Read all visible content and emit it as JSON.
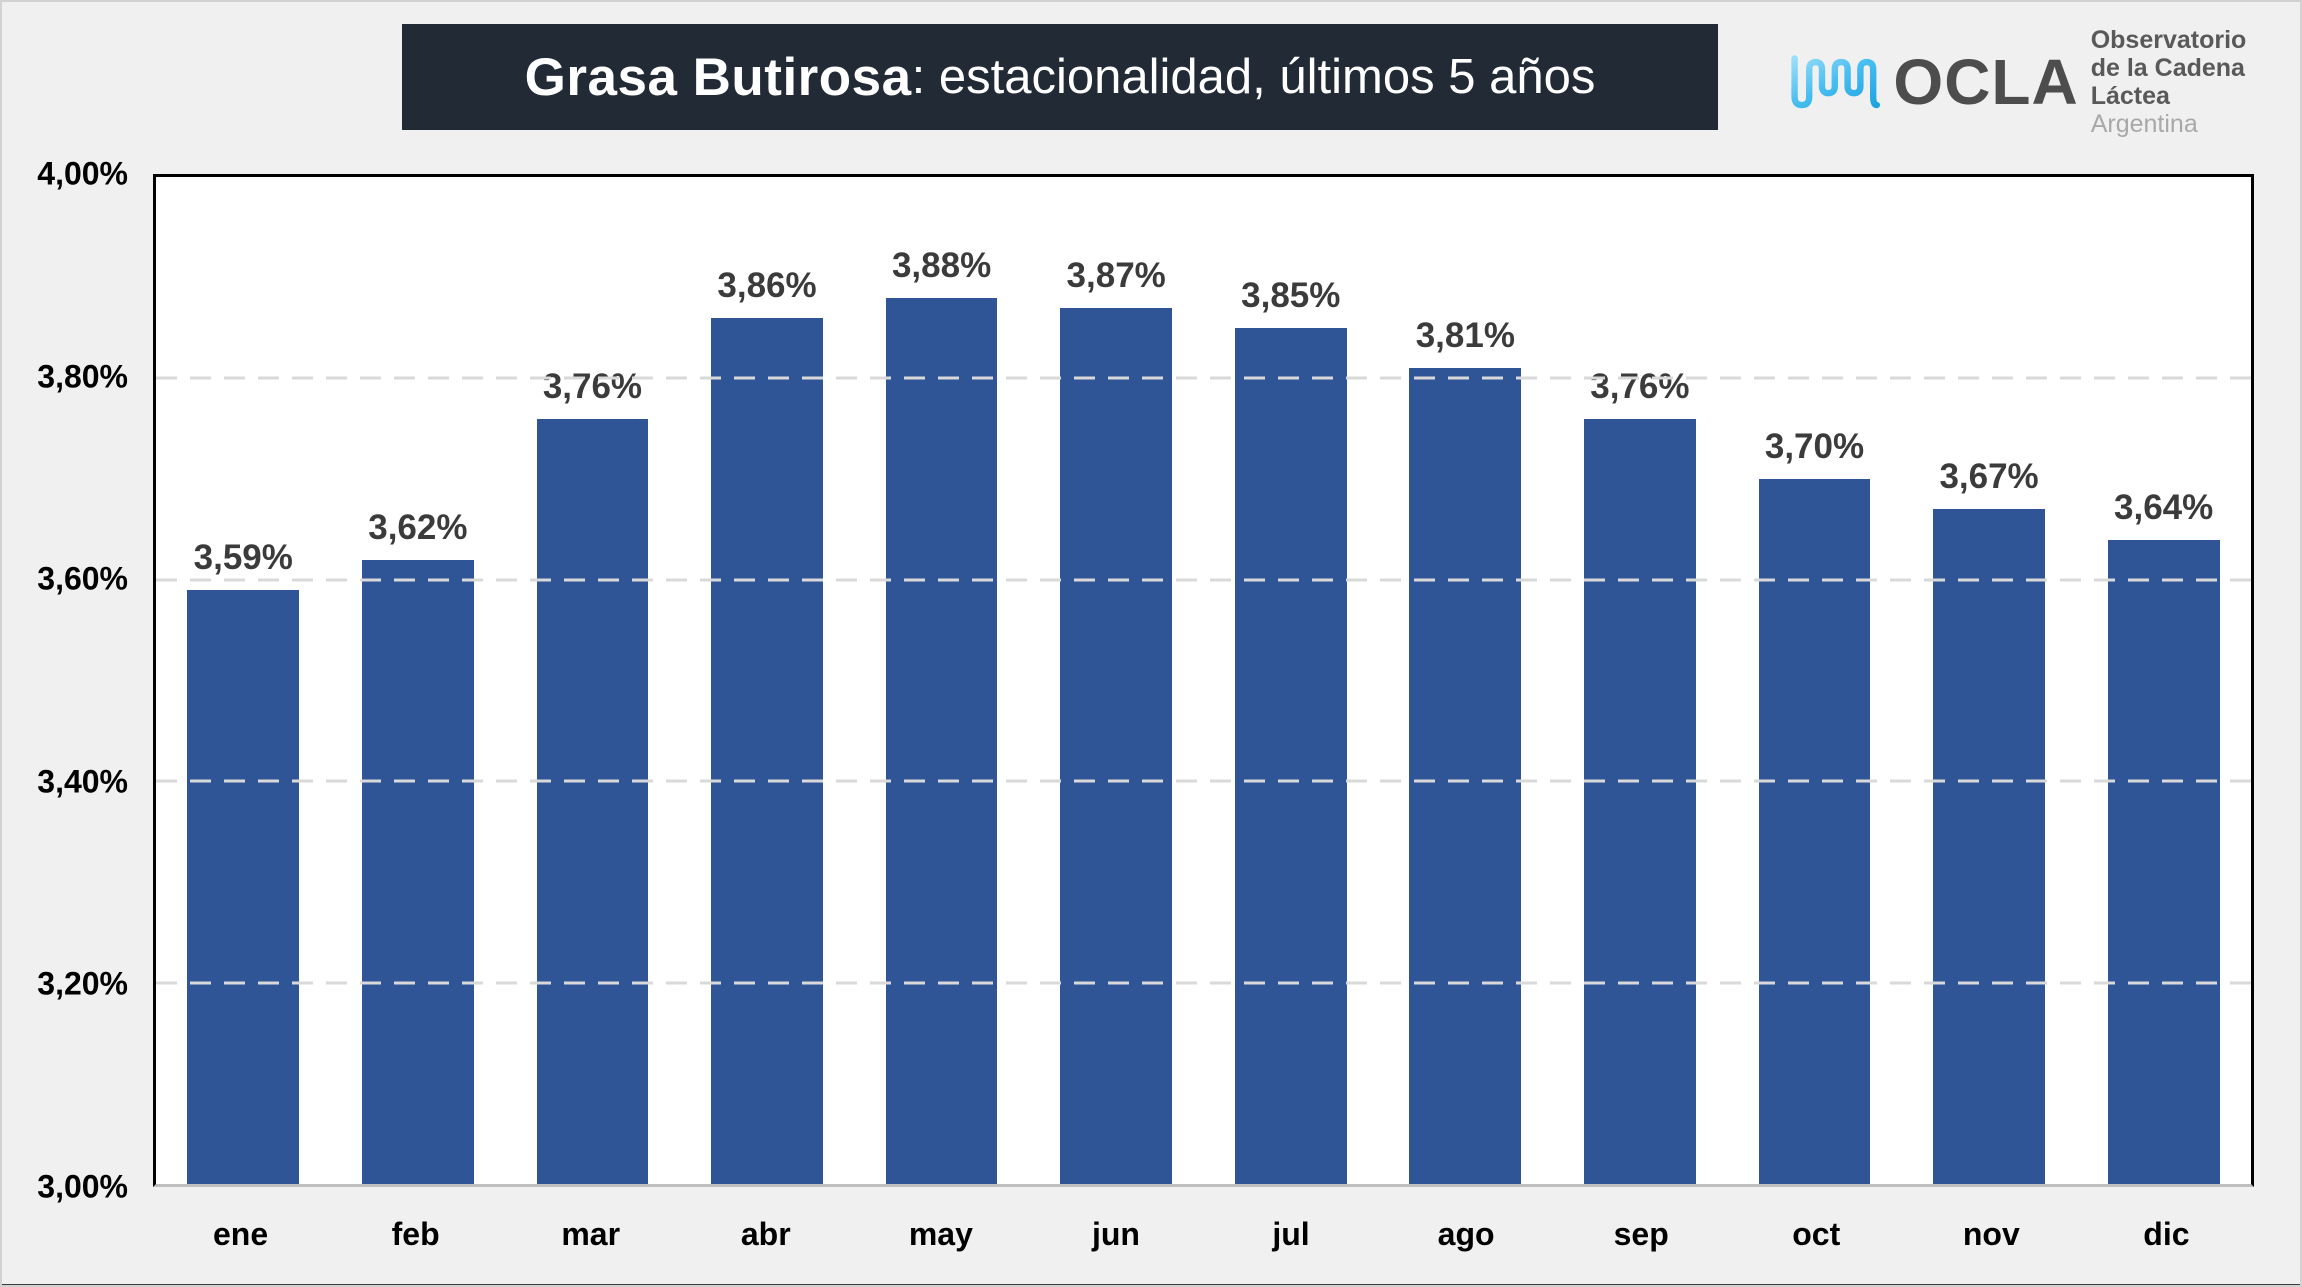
{
  "page": {
    "background": "#F0F0F0"
  },
  "header": {
    "title_bold": "Grasa Butirosa",
    "title_rest": ": estacionalidad, últimos 5 años",
    "title_bg": "#222A35",
    "title_color": "#FFFFFF"
  },
  "logo": {
    "acronym": "OCLA",
    "line1": "Observatorio",
    "line2": "de la Cadena Láctea",
    "line3": "Argentina",
    "wave_color_light": "#8FD9F8",
    "wave_color_dark": "#1FA3E0",
    "text_color": "#595959",
    "muted_color": "#A8A8A8"
  },
  "chart_data": {
    "type": "bar",
    "title": "Grasa Butirosa: estacionalidad, últimos 5 años",
    "categories": [
      "ene",
      "feb",
      "mar",
      "abr",
      "may",
      "jun",
      "jul",
      "ago",
      "sep",
      "oct",
      "nov",
      "dic"
    ],
    "values": [
      3.59,
      3.62,
      3.76,
      3.86,
      3.88,
      3.87,
      3.85,
      3.81,
      3.76,
      3.7,
      3.67,
      3.64
    ],
    "data_labels": [
      "3,59%",
      "3,62%",
      "3,76%",
      "3,86%",
      "3,88%",
      "3,87%",
      "3,85%",
      "3,81%",
      "3,76%",
      "3,70%",
      "3,67%",
      "3,64%"
    ],
    "xlabel": "",
    "ylabel": "",
    "ylim": [
      3.0,
      4.0
    ],
    "ytick_step": 0.2,
    "ytick_labels": [
      "3,00%",
      "3,20%",
      "3,40%",
      "3,60%",
      "3,80%",
      "4,00%"
    ],
    "grid": "horizontal-dashed",
    "legend": "none",
    "bar_color": "#2F5597",
    "label_color": "#3B3B3B",
    "gridline_color": "#D9D9D9"
  }
}
